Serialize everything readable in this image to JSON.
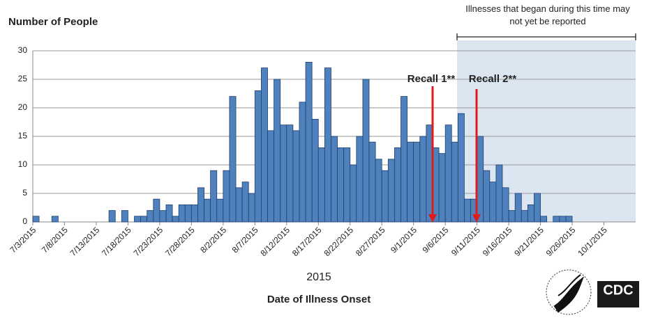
{
  "chart_data": {
    "type": "bar",
    "y_label": "Number of People",
    "x_label": "Date of Illness Onset",
    "x_year": "2015",
    "annotations": [
      "Recall 1**",
      "Recall 2**"
    ],
    "note": "Illnesses that began during this time may not yet be reported",
    "logo": "CDC",
    "color": "#4f81bd",
    "grid": true,
    "ylim": [
      0,
      30
    ],
    "yticks": [
      0,
      5,
      10,
      15,
      20,
      25,
      30
    ],
    "categories": [
      "7/3/2015",
      null,
      null,
      null,
      null,
      "7/8/2015",
      null,
      null,
      null,
      null,
      "7/13/2015",
      null,
      null,
      null,
      null,
      "7/18/2015",
      null,
      null,
      null,
      null,
      "7/23/2015",
      null,
      null,
      null,
      null,
      "7/28/2015",
      null,
      null,
      null,
      null,
      "8/2/2015",
      null,
      null,
      null,
      null,
      "8/7/2015",
      null,
      null,
      null,
      null,
      "8/12/2015",
      null,
      null,
      null,
      null,
      "8/17/2015",
      null,
      null,
      null,
      null,
      "8/22/2015",
      null,
      null,
      null,
      null,
      "8/27/2015",
      null,
      null,
      null,
      null,
      "9/1/2015",
      null,
      null,
      null,
      null,
      "9/6/2015",
      null,
      null,
      null,
      null,
      "9/11/2015",
      null,
      null,
      null,
      null,
      "9/16/2015",
      null,
      null,
      null,
      null,
      "9/21/2015",
      null,
      null,
      null,
      null,
      "9/26/2015",
      null,
      null,
      null,
      null,
      "10/1/2015",
      null,
      null,
      null,
      null
    ],
    "values": [
      1,
      0,
      0,
      1,
      0,
      0,
      0,
      0,
      0,
      0,
      0,
      0,
      2,
      0,
      2,
      0,
      1,
      1,
      2,
      4,
      2,
      3,
      1,
      3,
      3,
      3,
      6,
      4,
      9,
      4,
      9,
      22,
      6,
      7,
      5,
      23,
      27,
      16,
      25,
      17,
      17,
      16,
      21,
      28,
      18,
      13,
      27,
      15,
      13,
      13,
      10,
      15,
      25,
      14,
      11,
      9,
      11,
      13,
      22,
      14,
      14,
      15,
      17,
      13,
      12,
      17,
      14,
      19,
      4,
      4,
      15,
      9,
      7,
      10,
      6,
      2,
      5,
      2,
      3,
      5,
      1,
      0,
      1,
      1,
      1,
      0,
      0,
      0,
      0,
      0,
      0,
      0,
      0,
      0,
      0
    ]
  }
}
